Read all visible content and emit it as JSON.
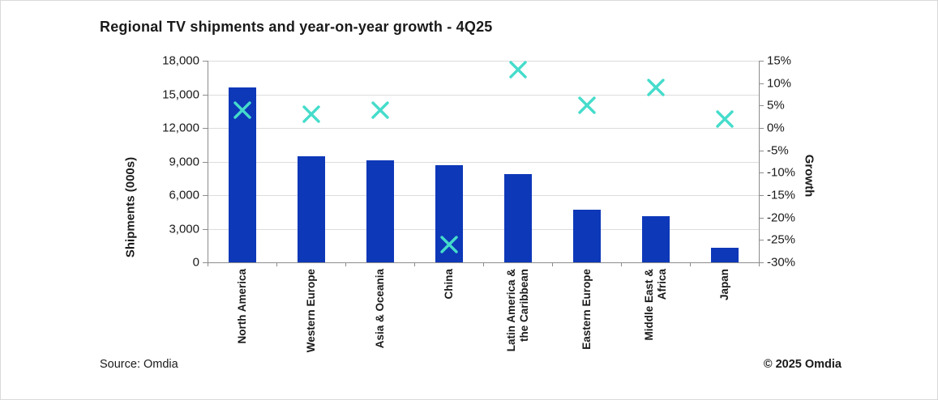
{
  "colors": {
    "bar": "#0d38b8",
    "marker": "#45dccb",
    "gridline": "#dcdcdc",
    "axis_line": "#8c8c8c",
    "text": "#1a1a1a"
  },
  "footer": {
    "source": "Source: Omdia",
    "copyright": "© 2025 Omdia"
  },
  "chart_data": {
    "type": "bar",
    "title": "Regional TV shipments and year-on-year growth - 4Q25",
    "categories": [
      "North America",
      "Western Europe",
      "Asia & Oceania",
      "China",
      "Latin America & the Caribbean",
      "Eastern Europe",
      "Middle East & Africa",
      "Japan"
    ],
    "category_display_labels": [
      "North America",
      "Western Europe",
      "Asia & Oceania",
      "China",
      "Latin America &\nthe Caribbean",
      "Eastern Europe",
      "Middle East &\nAfrica",
      "Japan"
    ],
    "series": [
      {
        "name": "Shipments (000s)",
        "type": "bar",
        "axis": "left",
        "values": [
          15600,
          9500,
          9100,
          8700,
          7900,
          4700,
          4100,
          1300
        ]
      },
      {
        "name": "Growth",
        "type": "scatter-x-marker",
        "axis": "right",
        "values_pct": [
          4,
          3,
          4,
          -26,
          13,
          5,
          9,
          2
        ]
      }
    ],
    "left_axis": {
      "title": "Shipments (000s)",
      "min": 0,
      "max": 18000,
      "tick_step": 3000,
      "tick_labels": [
        "18,000",
        "15,000",
        "12,000",
        "9,000",
        "6,000",
        "3,000",
        "0"
      ]
    },
    "right_axis": {
      "title": "Growth",
      "min": -30,
      "max": 15,
      "tick_step": 5,
      "tick_labels": [
        "15%",
        "10%",
        "5%",
        "0%",
        "-5%",
        "-10%",
        "-15%",
        "-20%",
        "-25%",
        "-30%"
      ]
    },
    "grid": "horizontal",
    "legend": "none"
  }
}
